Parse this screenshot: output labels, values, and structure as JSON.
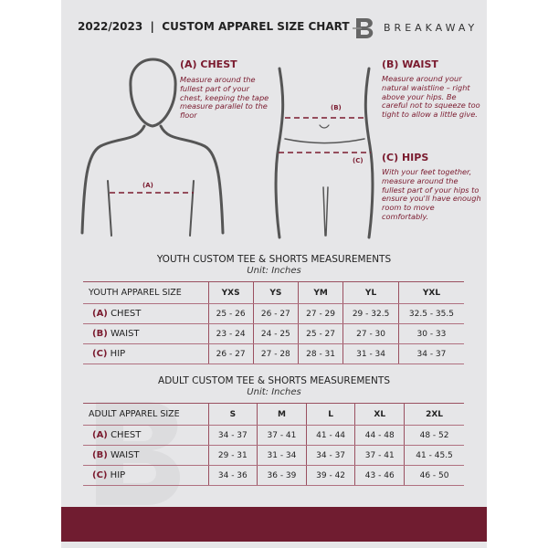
{
  "header": {
    "title": "2022/2023  |  CUSTOM APPAREL SIZE CHART",
    "brand": "BREAKAWAY",
    "logo_letter": "B"
  },
  "chest": {
    "heading": "(A) CHEST",
    "text": "Measure around the fullest part of your chest, keeping the tape measure parallel to the floor",
    "marker": "(A)"
  },
  "waist": {
    "heading": "(B) WAIST",
    "text": "Measure around your natural waistline – right above your hips. Be careful not to squeeze too tight to allow a little give.",
    "marker": "(B)"
  },
  "hips": {
    "heading": "(C) HIPS",
    "text": "With your feet together, measure around the fullest part of your hips to ensure you'll have enough room to move comfortably.",
    "marker": "(C)"
  },
  "youth": {
    "title": "YOUTH CUSTOM TEE & SHORTS MEASUREMENTS",
    "unit": "Unit: Inches",
    "header": [
      "YOUTH APPAREL SIZE",
      "YXS",
      "YS",
      "YM",
      "YL",
      "YXL"
    ],
    "rows": [
      {
        "letter": "(A)",
        "label": "CHEST",
        "values": [
          "25 - 26",
          "26 - 27",
          "27 - 29",
          "29 - 32.5",
          "32.5 - 35.5"
        ]
      },
      {
        "letter": "(B)",
        "label": "WAIST",
        "values": [
          "23 - 24",
          "24 - 25",
          "25 - 27",
          "27 - 30",
          "30 - 33"
        ]
      },
      {
        "letter": "(C)",
        "label": "HIP",
        "values": [
          "26 - 27",
          "27 - 28",
          "28 - 31",
          "31 - 34",
          "34 - 37"
        ]
      }
    ]
  },
  "adult": {
    "title": "ADULT CUSTOM TEE & SHORTS MEASUREMENTS",
    "unit": "Unit: Inches",
    "header": [
      "ADULT APPAREL SIZE",
      "S",
      "M",
      "L",
      "XL",
      "2XL"
    ],
    "rows": [
      {
        "letter": "(A)",
        "label": "CHEST",
        "values": [
          "34 - 37",
          "37 - 41",
          "41 - 44",
          "44 - 48",
          "48 - 52"
        ]
      },
      {
        "letter": "(B)",
        "label": "WAIST",
        "values": [
          "29 - 31",
          "31 - 34",
          "34 - 37",
          "37 - 41",
          "41 - 45.5"
        ]
      },
      {
        "letter": "(C)",
        "label": "HIP",
        "values": [
          "34 - 36",
          "36 - 39",
          "39 - 42",
          "43 - 46",
          "46 - 50"
        ]
      }
    ]
  },
  "colors": {
    "accent": "#701c30",
    "background": "#e6e6e8"
  }
}
